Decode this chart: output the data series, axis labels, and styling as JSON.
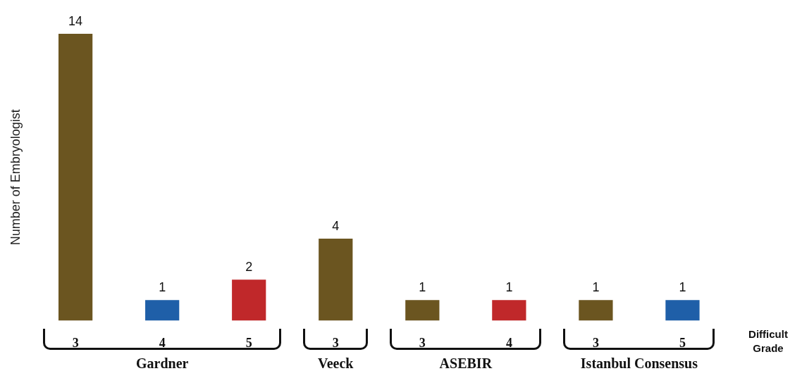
{
  "chart_data": {
    "type": "bar",
    "ylabel": "Number of Embryologist",
    "xlabel": "Difficult Grade",
    "categories": [
      "3",
      "4",
      "5",
      "3",
      "3",
      "4",
      "3",
      "5"
    ],
    "values": [
      14,
      1,
      2,
      4,
      1,
      1,
      1,
      1
    ],
    "colors": [
      "#6b5520",
      "#1f5fa8",
      "#c0282a",
      "#6b5520",
      "#6b5520",
      "#c0282a",
      "#6b5520",
      "#1f5fa8"
    ],
    "data_labels": true,
    "grid": false,
    "legend": false,
    "annotations": [
      "Gardner",
      "Veeck",
      "ASEBIR",
      "Istanbul Consensus"
    ]
  }
}
